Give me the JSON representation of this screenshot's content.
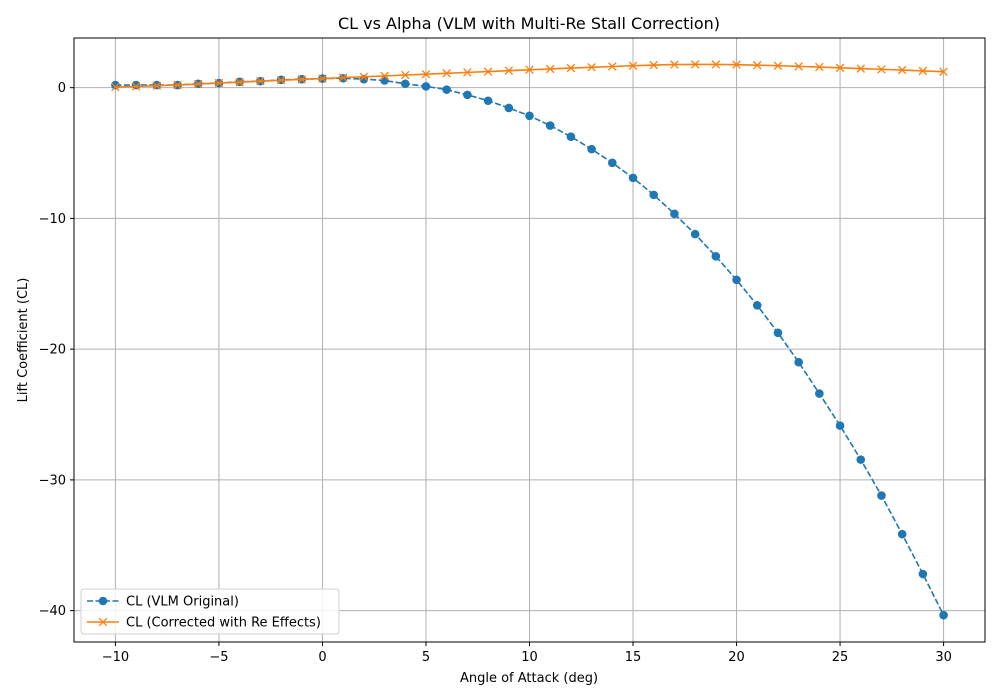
{
  "chart_data": {
    "type": "line",
    "title": "CL vs Alpha (VLM with Multi-Re Stall Correction)",
    "xlabel": "Angle of Attack (deg)",
    "ylabel": "Lift Coefficient (CL)",
    "xlim": [
      -12,
      32
    ],
    "ylim": [
      -42.4,
      3.8
    ],
    "grid": true,
    "legend_position": "lower left",
    "x_ticks": [
      -10,
      -5,
      0,
      5,
      10,
      15,
      20,
      25,
      30
    ],
    "x_tick_labels": [
      "−10",
      "−5",
      "0",
      "5",
      "10",
      "15",
      "20",
      "25",
      "30"
    ],
    "y_ticks": [
      0,
      -10,
      -20,
      -30,
      -40
    ],
    "y_tick_labels": [
      "0",
      "−10",
      "−20",
      "−30",
      "−40"
    ],
    "x": [
      -10,
      -9,
      -8,
      -7,
      -6,
      -5,
      -4,
      -3,
      -2,
      -1,
      0,
      1,
      2,
      3,
      4,
      5,
      6,
      7,
      8,
      9,
      10,
      11,
      12,
      13,
      14,
      15,
      16,
      17,
      18,
      19,
      20,
      21,
      22,
      23,
      24,
      25,
      26,
      27,
      28,
      29,
      30
    ],
    "series": [
      {
        "name": "CL (VLM Original)",
        "color": "#1f77b4",
        "line_style": "dashed",
        "marker": "circle",
        "values": [
          0.2,
          0.2,
          0.2,
          0.2,
          0.3,
          0.35,
          0.45,
          0.5,
          0.6,
          0.65,
          0.7,
          0.72,
          0.65,
          0.55,
          0.3,
          0.1,
          -0.15,
          -0.55,
          -1.0,
          -1.55,
          -2.15,
          -2.9,
          -3.75,
          -4.7,
          -5.75,
          -6.9,
          -8.2,
          -9.65,
          -11.2,
          -12.9,
          -14.7,
          -16.65,
          -18.75,
          -21.0,
          -23.4,
          -25.85,
          -28.45,
          -31.2,
          -34.15,
          -37.2,
          -40.35
        ]
      },
      {
        "name": "CL (Corrected with Re Effects)",
        "color": "#ff7f0e",
        "line_style": "solid",
        "marker": "x",
        "values": [
          0.05,
          0.1,
          0.15,
          0.2,
          0.28,
          0.35,
          0.42,
          0.5,
          0.57,
          0.63,
          0.7,
          0.77,
          0.83,
          0.9,
          0.97,
          1.03,
          1.1,
          1.17,
          1.23,
          1.3,
          1.37,
          1.43,
          1.5,
          1.56,
          1.62,
          1.68,
          1.73,
          1.77,
          1.78,
          1.78,
          1.76,
          1.72,
          1.68,
          1.63,
          1.58,
          1.52,
          1.46,
          1.4,
          1.35,
          1.28,
          1.22
        ]
      }
    ]
  }
}
